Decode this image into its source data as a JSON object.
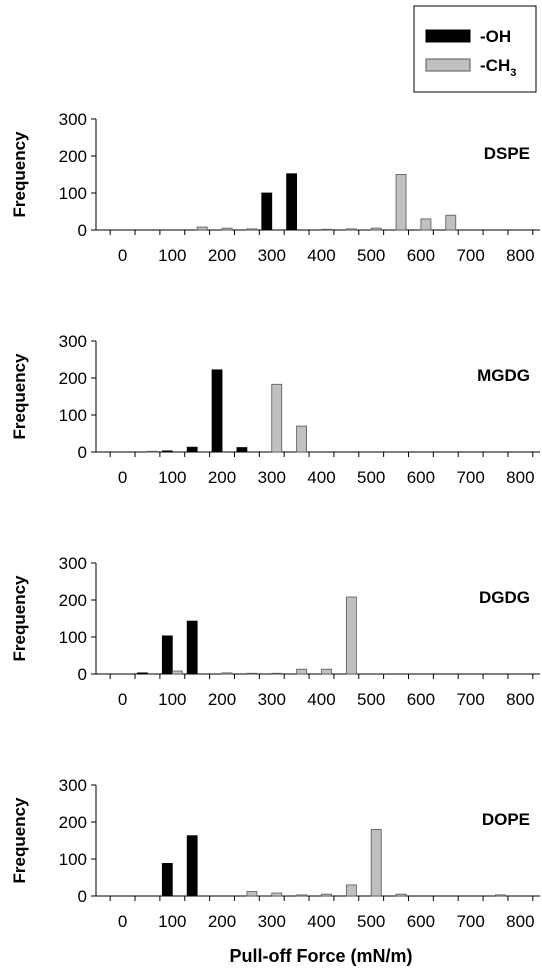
{
  "chart_data": {
    "type": "bar",
    "xlabel": "Pull-off Force (mN/m)",
    "ylabel": "Frequency",
    "ylim": [
      0,
      300
    ],
    "yticks": [
      0,
      100,
      200,
      300
    ],
    "xtick_labels": [
      "0",
      "100",
      "200",
      "300",
      "400",
      "500",
      "600",
      "700",
      "800"
    ],
    "legend": {
      "position": "top-right",
      "entries": [
        {
          "series": "oh",
          "label": "-OH",
          "color": "#000000"
        },
        {
          "series": "ch3",
          "label": "-CH",
          "subscript": "3",
          "color": "#c0c0c0"
        }
      ]
    },
    "categories": [
      0,
      50,
      100,
      150,
      200,
      250,
      300,
      350,
      400,
      450,
      500,
      550,
      600,
      650,
      700,
      750,
      800
    ],
    "panels": [
      {
        "title": "DSPE",
        "series": [
          {
            "key": "oh",
            "values": [
              0,
              0,
              0,
              0,
              0,
              0,
              100,
              152,
              0,
              0,
              0,
              0,
              0,
              0,
              0,
              0,
              0
            ]
          },
          {
            "key": "ch3",
            "values": [
              0,
              0,
              0,
              8,
              5,
              3,
              0,
              0,
              2,
              3,
              5,
              150,
              30,
              40,
              0,
              0,
              0
            ]
          }
        ]
      },
      {
        "title": "MGDG",
        "series": [
          {
            "key": "oh",
            "values": [
              0,
              0,
              3,
              13,
              222,
              12,
              0,
              0,
              0,
              0,
              0,
              0,
              0,
              0,
              0,
              0,
              0
            ]
          },
          {
            "key": "ch3",
            "values": [
              0,
              2,
              0,
              0,
              0,
              0,
              183,
              70,
              0,
              0,
              0,
              0,
              0,
              0,
              0,
              0,
              0
            ]
          }
        ]
      },
      {
        "title": "DGDG",
        "series": [
          {
            "key": "oh",
            "values": [
              0,
              3,
              103,
              143,
              0,
              0,
              0,
              0,
              0,
              0,
              0,
              0,
              0,
              0,
              0,
              0,
              0
            ]
          },
          {
            "key": "ch3",
            "values": [
              0,
              0,
              8,
              0,
              3,
              2,
              2,
              13,
              13,
              208,
              0,
              0,
              0,
              0,
              0,
              0,
              0
            ]
          }
        ]
      },
      {
        "title": "DOPE",
        "series": [
          {
            "key": "oh",
            "values": [
              0,
              0,
              88,
              163,
              0,
              0,
              0,
              0,
              0,
              0,
              0,
              0,
              0,
              0,
              0,
              0,
              0
            ]
          },
          {
            "key": "ch3",
            "values": [
              0,
              0,
              0,
              0,
              0,
              12,
              8,
              3,
              5,
              30,
              180,
              5,
              0,
              0,
              0,
              3,
              0
            ]
          }
        ]
      }
    ]
  }
}
